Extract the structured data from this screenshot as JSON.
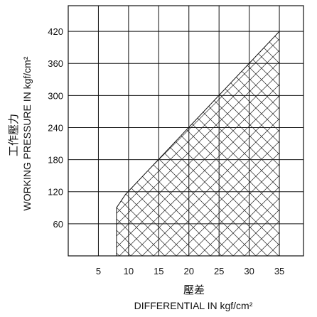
{
  "chart_data": {
    "type": "area",
    "title": "",
    "xlabel_cjk": "壓差",
    "xlabel": "DIFFERENTIAL IN kgf/cm²",
    "ylabel_cjk": "工作壓力",
    "ylabel": "WORKING PRESSURE IN kgf/cm²",
    "x_ticks": [
      "5",
      "10",
      "15",
      "20",
      "25",
      "30",
      "35"
    ],
    "x_tick_values": [
      5,
      10,
      15,
      20,
      25,
      30,
      35
    ],
    "y_ticks": [
      "60",
      "120",
      "180",
      "240",
      "300",
      "360",
      "420"
    ],
    "y_tick_values": [
      60,
      120,
      180,
      240,
      300,
      360,
      420
    ],
    "xlim": [
      0,
      39
    ],
    "ylim": [
      0,
      468
    ],
    "grid": true,
    "hatch": "cross-hatch",
    "region": {
      "x_min": 8,
      "x_max": 35,
      "boundary": [
        {
          "x": 8,
          "y": 0
        },
        {
          "x": 8,
          "y": 90
        },
        {
          "x": 9.5,
          "y": 115
        },
        {
          "x": 35,
          "y": 420
        },
        {
          "x": 35,
          "y": 0
        }
      ]
    }
  }
}
